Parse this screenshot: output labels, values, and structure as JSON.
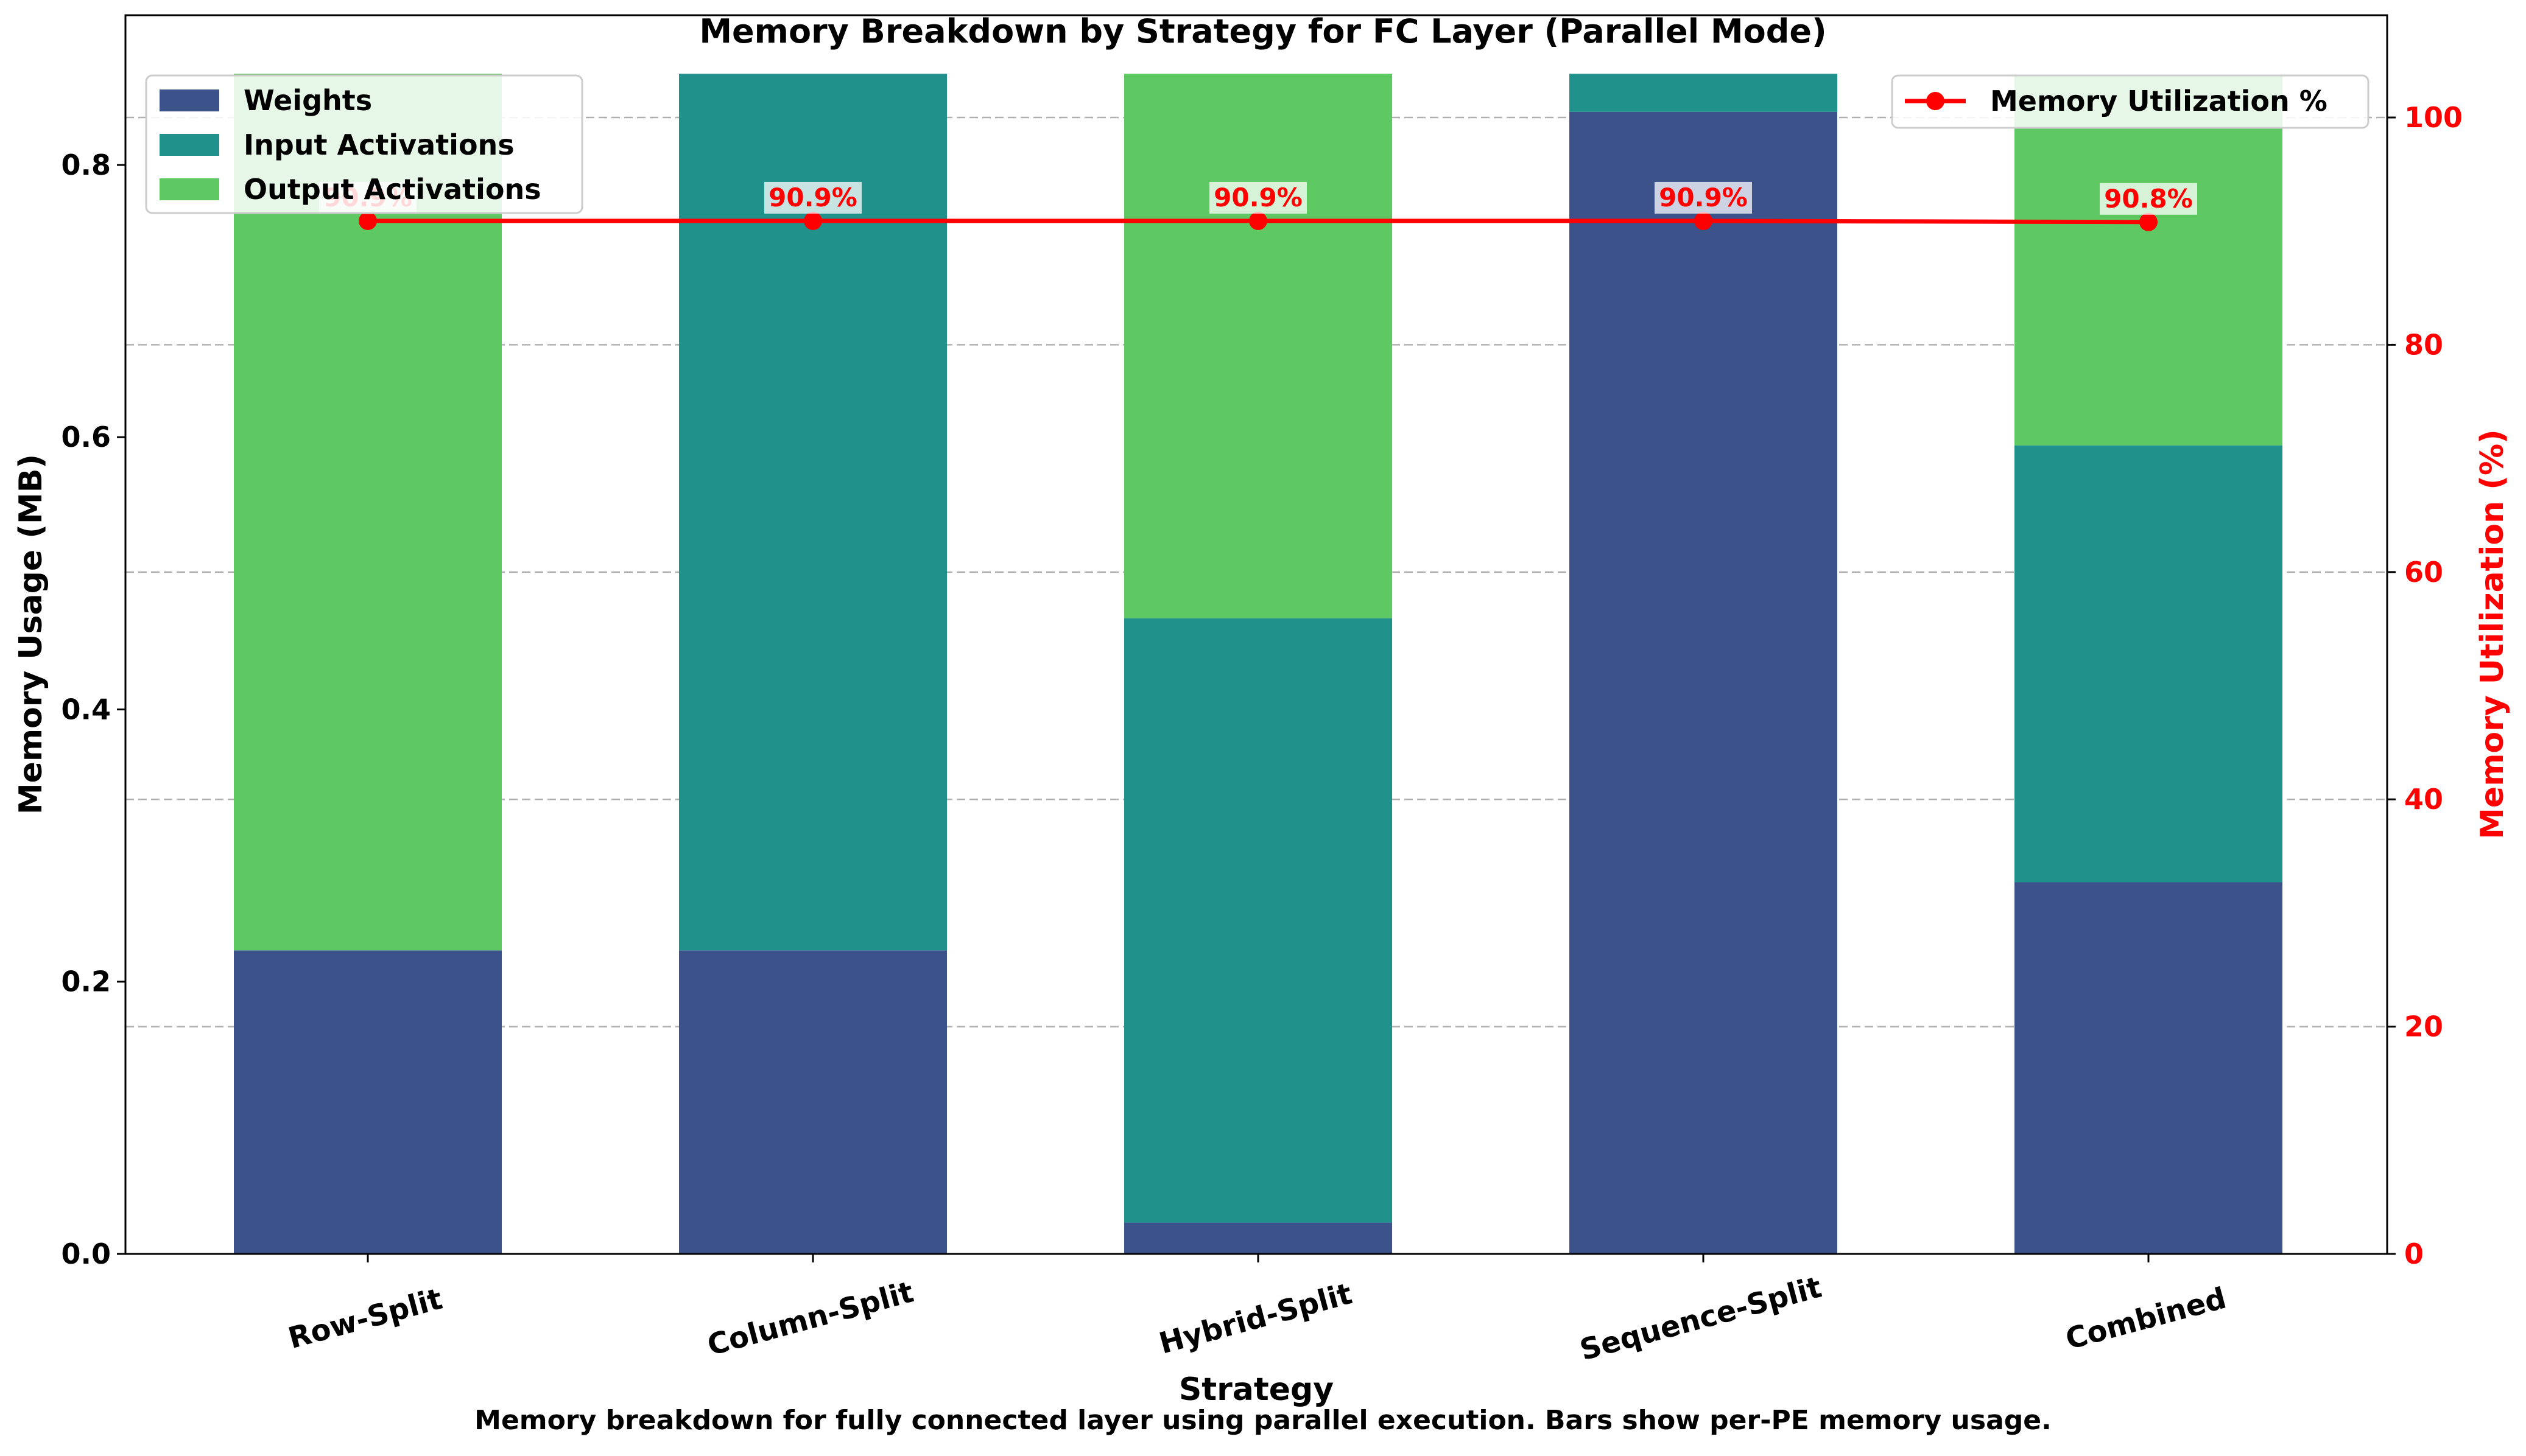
{
  "chart_data": {
    "type": "bar",
    "title": "Memory Breakdown by Strategy for FC Layer (Parallel Mode)",
    "xlabel": "Strategy",
    "ylabel": "Memory Usage (MB)",
    "y2label": "Memory Utilization (%)",
    "caption": "Memory breakdown for fully connected layer using parallel execution. Bars show per-PE memory usage.",
    "categories": [
      "Row-Split",
      "Column-Split",
      "Hybrid-Split",
      "Sequence-Split",
      "Combined"
    ],
    "stacked": true,
    "ylim": [
      0,
      0.91
    ],
    "y2lim": [
      0,
      109
    ],
    "yticks": [
      0.0,
      0.2,
      0.4,
      0.6,
      0.8
    ],
    "ytick_labels": [
      "0.0",
      "0.2",
      "0.4",
      "0.6",
      "0.8"
    ],
    "y2ticks": [
      0,
      20,
      40,
      60,
      80,
      100
    ],
    "y2tick_labels": [
      "0",
      "20",
      "40",
      "60",
      "80",
      "100"
    ],
    "grid": "y-dashed",
    "series": [
      {
        "name": "Weights",
        "color": "#3b528b",
        "values": [
          0.223,
          0.223,
          0.023,
          0.839,
          0.273
        ]
      },
      {
        "name": "Input Activations",
        "color": "#21918c",
        "values": [
          0.0,
          0.644,
          0.444,
          0.028,
          0.321
        ]
      },
      {
        "name": "Output Activations",
        "color": "#5ec962",
        "values": [
          0.644,
          0.0,
          0.4,
          0.0,
          0.272
        ]
      }
    ],
    "line_series": {
      "name": "Memory Utilization %",
      "color": "#ff0000",
      "axis": "right",
      "values": [
        90.9,
        90.9,
        90.9,
        90.9,
        90.8
      ],
      "labels": [
        "90.9%",
        "90.9%",
        "90.9%",
        "90.9%",
        "90.8%"
      ]
    },
    "legend_left_placement": "top-left",
    "legend_right_placement": "top-right"
  }
}
